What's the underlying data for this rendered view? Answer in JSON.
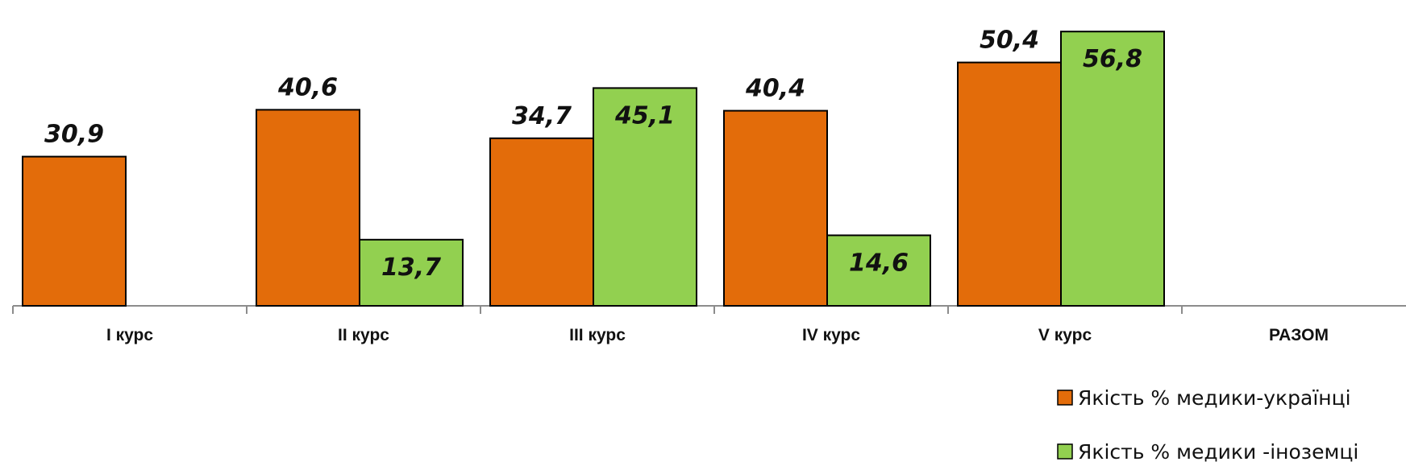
{
  "chart_data": {
    "type": "bar",
    "categories": [
      "I курс",
      "II курс",
      "III курс",
      "IV курс",
      "V курс",
      "РАЗОМ"
    ],
    "series": [
      {
        "name": "Якість % медики-українці",
        "color": "#E36C0A",
        "values": [
          30.9,
          40.6,
          34.7,
          40.4,
          50.4,
          null
        ],
        "labels": [
          "30,9",
          "40,6",
          "34,7",
          "40,4",
          "50,4",
          ""
        ]
      },
      {
        "name": "Якість % медики -іноземці",
        "color": "#92D050",
        "values": [
          null,
          13.7,
          45.1,
          14.6,
          56.8,
          null
        ],
        "labels": [
          "",
          "13,7",
          "45,1",
          "14,6",
          "56,8",
          ""
        ]
      }
    ],
    "ylim": [
      0,
      60
    ],
    "grid": false,
    "legend": "bottom-right"
  }
}
